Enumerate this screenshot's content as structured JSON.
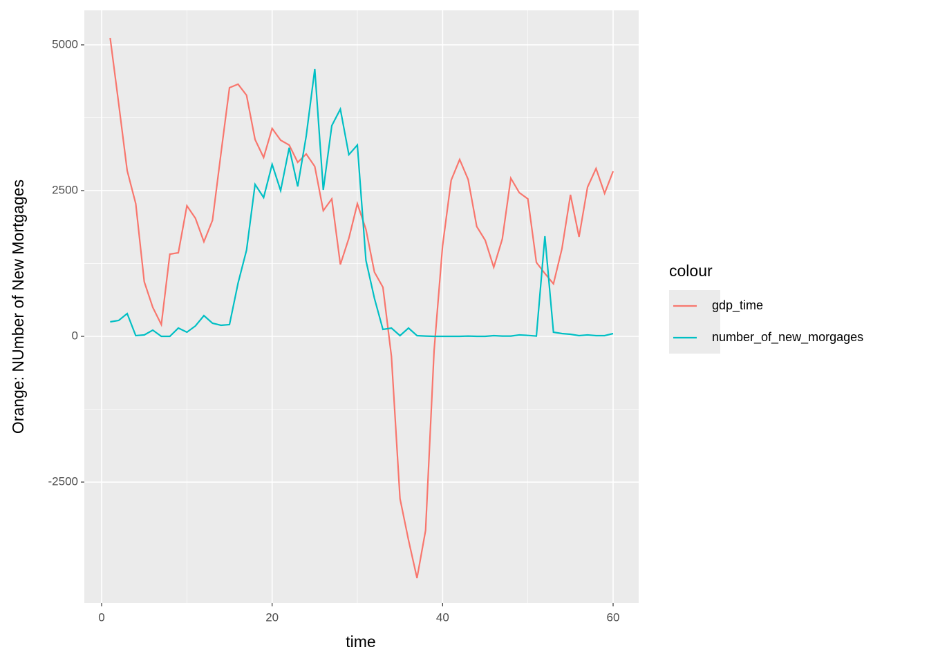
{
  "chart_data": {
    "type": "line",
    "x_label": "time",
    "y_label": "Orange: NUmber of New Mortgages",
    "legend_title": "colour",
    "legend_position": "right",
    "grid": true,
    "x": [
      1,
      2,
      3,
      4,
      5,
      6,
      7,
      8,
      9,
      10,
      11,
      12,
      13,
      14,
      15,
      16,
      17,
      18,
      19,
      20,
      21,
      22,
      23,
      24,
      25,
      26,
      27,
      28,
      29,
      30,
      31,
      32,
      33,
      34,
      35,
      36,
      37,
      38,
      39,
      40,
      41,
      42,
      43,
      44,
      45,
      46,
      47,
      48,
      49,
      50,
      51,
      52,
      53,
      54,
      55,
      56,
      57,
      58,
      59,
      60
    ],
    "series": [
      {
        "name": "gdp_time",
        "color": "#F8766D",
        "values": [
          5118,
          3993,
          2844,
          2275,
          936,
          498,
          201,
          1410,
          1434,
          2239,
          2026,
          1623,
          1991,
          3140,
          4265,
          4325,
          4135,
          3377,
          3069,
          3566,
          3365,
          3282,
          2986,
          3128,
          2915,
          2156,
          2358,
          1232,
          1682,
          2275,
          1836,
          1102,
          841,
          -344,
          -2784,
          -3495,
          -4147,
          -3329,
          -249,
          1552,
          2678,
          3033,
          2690,
          1884,
          1647,
          1185,
          1671,
          2713,
          2464,
          2358,
          1268,
          1078,
          900,
          1505,
          2429,
          1706,
          2559,
          2879,
          2453,
          2832
        ]
      },
      {
        "name": "number_of_new_morgages",
        "color": "#00BFC4",
        "values": [
          249,
          273,
          391,
          12,
          24,
          107,
          0,
          0,
          142,
          71,
          178,
          355,
          225,
          190,
          201,
          912,
          1481,
          2607,
          2381,
          2950,
          2500,
          3235,
          2571,
          3436,
          4585,
          2512,
          3614,
          3898,
          3116,
          3282,
          1303,
          652,
          118,
          142,
          12,
          142,
          12,
          5,
          0,
          0,
          0,
          0,
          5,
          0,
          0,
          12,
          5,
          5,
          24,
          15,
          5,
          1718,
          71,
          47,
          36,
          12,
          24,
          12,
          12,
          47
        ]
      }
    ],
    "xlim": [
      -2.03,
      63.0
    ],
    "xticks": [
      0,
      20,
      40,
      60
    ],
    "ylim": [
      -4573,
      5592
    ],
    "yticks": [
      -2500,
      0,
      2500,
      5000
    ]
  }
}
